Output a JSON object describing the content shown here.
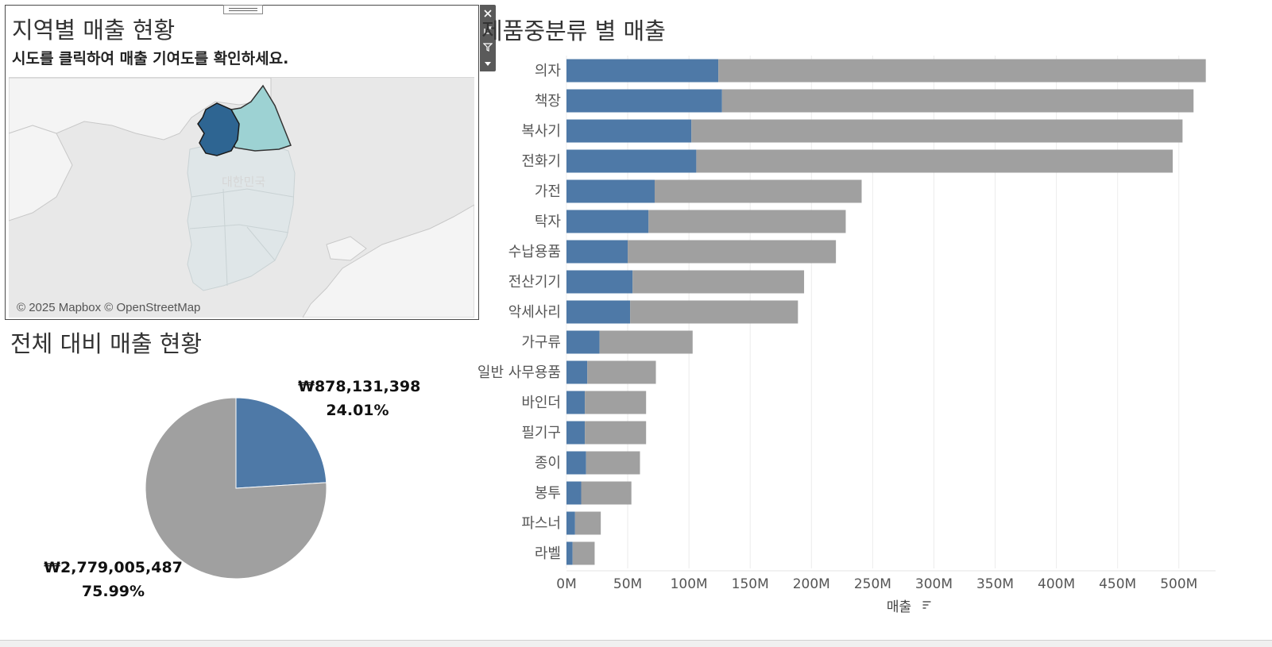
{
  "map_panel": {
    "title": "지역별 매출 현황",
    "subtitle": "시도를 클릭하여 매출 기여도를 확인하세요.",
    "attribution": "© 2025 Mapbox © OpenStreetMap",
    "watermark": "대한민국",
    "colors": {
      "selected_region": "#2e6592",
      "secondary_region": "#9dd2d3",
      "other_regions": "#dfe6e8",
      "land": "#f5f5f5",
      "sea": "#e8e8e8"
    }
  },
  "toolbar": {
    "icons": [
      "close-icon",
      "popout-icon",
      "filter-icon",
      "more-options-icon"
    ]
  },
  "pie_panel": {
    "title": "전체 대비 매출 현황",
    "slice_a_amount": "₩878,131,398",
    "slice_a_pct": "24.01%",
    "slice_b_amount": "₩2,779,005,487",
    "slice_b_pct": "75.99%"
  },
  "bar_panel": {
    "title": "제품중분류 별 매출",
    "sort_icon": "sort-descending-icon"
  },
  "chart_data": [
    {
      "type": "pie",
      "title": "전체 대비 매출 현황",
      "slices": [
        {
          "label": "₩878,131,398",
          "value": 878131398,
          "percent": 24.01,
          "color": "#4e79a7"
        },
        {
          "label": "₩2,779,005,487",
          "value": 2779005487,
          "percent": 75.99,
          "color": "#a0a0a0"
        }
      ]
    },
    {
      "type": "bar",
      "orientation": "horizontal",
      "stacked": true,
      "title": "제품중분류 별 매출",
      "xlabel": "매출",
      "ylabel": "",
      "xlim": [
        0,
        530
      ],
      "x_unit": "M",
      "x_ticks": [
        "0M",
        "50M",
        "100M",
        "150M",
        "200M",
        "250M",
        "300M",
        "350M",
        "400M",
        "450M",
        "500M"
      ],
      "grid": true,
      "categories": [
        "의자",
        "책장",
        "복사기",
        "전화기",
        "가전",
        "탁자",
        "수납용품",
        "전산기기",
        "악세사리",
        "가구류",
        "일반 사무용품",
        "바인더",
        "필기구",
        "종이",
        "봉투",
        "파스너",
        "라벨"
      ],
      "series": [
        {
          "color": "#4e79a7",
          "values": [
            124,
            127,
            102,
            106,
            72,
            67,
            50,
            54,
            52,
            27,
            17,
            15,
            15,
            16,
            12,
            7,
            5
          ]
        },
        {
          "color": "#a0a0a0",
          "values": [
            398,
            385,
            401,
            389,
            169,
            161,
            170,
            140,
            137,
            76,
            56,
            50,
            50,
            44,
            41,
            21,
            18
          ]
        }
      ]
    }
  ]
}
